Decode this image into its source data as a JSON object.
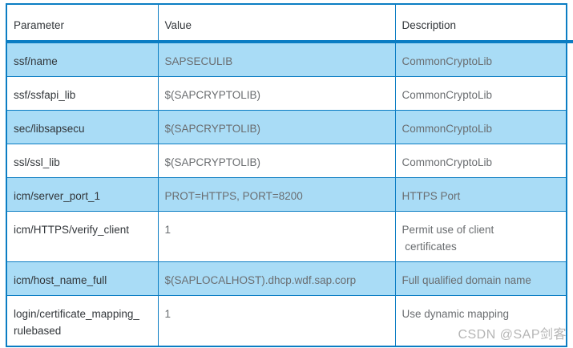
{
  "table": {
    "columns": [
      "Parameter",
      "Value",
      "Description"
    ],
    "rows": [
      {
        "parameter": "ssf/name",
        "value": "SAPSECULIB",
        "description": "CommonCryptoLib",
        "highlighted": true
      },
      {
        "parameter": "ssf/ssfapi_lib",
        "value": "$(SAPCRYPTOLIB)",
        "description": "CommonCryptoLib",
        "highlighted": false
      },
      {
        "parameter": "sec/libsapsecu",
        "value": "$(SAPCRYPTOLIB)",
        "description": "CommonCryptoLib",
        "highlighted": true
      },
      {
        "parameter": "ssl/ssl_lib",
        "value": "$(SAPCRYPTOLIB)",
        "description": "CommonCryptoLib",
        "highlighted": false
      },
      {
        "parameter": "icm/server_port_1",
        "value": "PROT=HTTPS, PORT=8200",
        "description": "HTTPS Port",
        "highlighted": true
      },
      {
        "parameter": "icm/HTTPS/verify_client",
        "value": "1",
        "description": "Permit use of client\n certificates",
        "highlighted": false
      },
      {
        "parameter": "icm/host_name_full",
        "value": "$(SAPLOCALHOST).dhcp.wdf.sap.corp",
        "description": "Full qualified domain name",
        "highlighted": true
      },
      {
        "parameter": "login/certificate_mapping_\nrulebased",
        "value": "1",
        "description": "Use dynamic mapping",
        "highlighted": false
      }
    ],
    "colors": {
      "border": "#0b7dc3",
      "row_highlight": "#a9dcf6",
      "dark_text": "#32363a",
      "gray_text": "#6a6d70"
    }
  },
  "watermark": {
    "text": "CSDN @SAP剑客",
    "color": "#b5b5b5"
  }
}
